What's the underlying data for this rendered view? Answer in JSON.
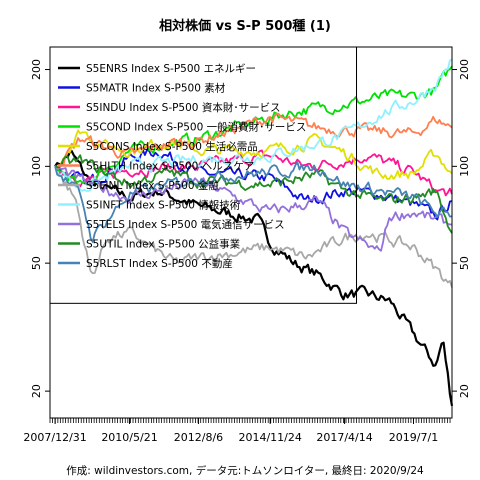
{
  "chart_data": {
    "type": "line",
    "title": "相対株価 vs S-P 500種 (1)",
    "caption": "作成: wildinvestors.com, データ元:トムソンロイター, 最終日: 2020/9/24",
    "y_scale": "log",
    "ylim": [
      16.5,
      235
    ],
    "y_ticks": [
      {
        "value": 20,
        "label": "20"
      },
      {
        "value": 50,
        "label": "50"
      },
      {
        "value": 100,
        "label": "100"
      },
      {
        "value": 200,
        "label": "200"
      }
    ],
    "x_range": [
      "2007-11-01",
      "2020-09-24"
    ],
    "x_ticks": [
      {
        "date": "2007-12-31",
        "label": "2007/12/31"
      },
      {
        "date": "2010-05-21",
        "label": "2010/5/21"
      },
      {
        "date": "2012-08-06",
        "label": "2012/8/6"
      },
      {
        "date": "2014-11-24",
        "label": "2014/11/24"
      },
      {
        "date": "2017-04-14",
        "label": "2017/4/14"
      },
      {
        "date": "2019-07-01",
        "label": "2019/7/1"
      }
    ],
    "marker_date": "2017-09-01",
    "legend_position": "top-left",
    "series": [
      {
        "name": "S5ENRS Index S-P500 エネルギー",
        "color": "#000000",
        "points": [
          [
            "2007-12-31",
            100
          ],
          [
            "2008-07-01",
            110
          ],
          [
            "2009-03-01",
            88
          ],
          [
            "2010-05-21",
            80
          ],
          [
            "2011-05-01",
            84
          ],
          [
            "2012-08-06",
            75
          ],
          [
            "2013-06-01",
            72
          ],
          [
            "2014-06-30",
            68
          ],
          [
            "2014-11-24",
            58
          ],
          [
            "2015-09-01",
            50
          ],
          [
            "2016-06-01",
            46
          ],
          [
            "2017-04-14",
            40
          ],
          [
            "2018-01-01",
            40
          ],
          [
            "2018-10-01",
            38
          ],
          [
            "2019-07-01",
            30
          ],
          [
            "2020-03-20",
            24
          ],
          [
            "2020-06-08",
            29
          ],
          [
            "2020-09-24",
            18
          ]
        ]
      },
      {
        "name": "S5MATR Index S-P500 素材",
        "color": "#1010e0",
        "points": [
          [
            "2007-12-31",
            100
          ],
          [
            "2009-01-01",
            88
          ],
          [
            "2010-05-21",
            106
          ],
          [
            "2011-05-01",
            112
          ],
          [
            "2012-08-06",
            95
          ],
          [
            "2014-11-24",
            92
          ],
          [
            "2016-01-15",
            78
          ],
          [
            "2017-04-14",
            84
          ],
          [
            "2018-06-01",
            82
          ],
          [
            "2019-07-01",
            76
          ],
          [
            "2020-03-20",
            70
          ],
          [
            "2020-09-24",
            78
          ]
        ]
      },
      {
        "name": "S5INDU Index S-P500 資本財･サービス",
        "color": "#ff1493",
        "points": [
          [
            "2007-12-31",
            100
          ],
          [
            "2009-01-01",
            90
          ],
          [
            "2010-05-21",
            98
          ],
          [
            "2012-08-06",
            100
          ],
          [
            "2014-11-24",
            108
          ],
          [
            "2016-01-01",
            100
          ],
          [
            "2017-04-14",
            104
          ],
          [
            "2018-01-01",
            108
          ],
          [
            "2019-07-01",
            96
          ],
          [
            "2020-03-20",
            84
          ],
          [
            "2020-09-24",
            82
          ]
        ]
      },
      {
        "name": "S5COND Index S-P500 一般消費財･サービス",
        "color": "#00e000",
        "points": [
          [
            "2007-12-31",
            100
          ],
          [
            "2008-11-01",
            86
          ],
          [
            "2010-05-21",
            112
          ],
          [
            "2012-08-06",
            122
          ],
          [
            "2014-11-24",
            142
          ],
          [
            "2016-01-01",
            150
          ],
          [
            "2017-04-14",
            156
          ],
          [
            "2018-09-01",
            165
          ],
          [
            "2019-07-01",
            165
          ],
          [
            "2020-03-20",
            172
          ],
          [
            "2020-09-24",
            205
          ]
        ]
      },
      {
        "name": "S5CONS Index S-P500 生活必需品",
        "color": "#e0e000",
        "points": [
          [
            "2007-12-31",
            100
          ],
          [
            "2008-11-01",
            130
          ],
          [
            "2009-06-01",
            118
          ],
          [
            "2010-05-21",
            112
          ],
          [
            "2011-09-01",
            120
          ],
          [
            "2012-08-06",
            112
          ],
          [
            "2014-11-24",
            112
          ],
          [
            "2016-06-01",
            120
          ],
          [
            "2017-04-14",
            110
          ],
          [
            "2018-06-01",
            94
          ],
          [
            "2019-07-01",
            95
          ],
          [
            "2020-03-20",
            110
          ],
          [
            "2020-09-24",
            95
          ]
        ]
      },
      {
        "name": "S5HLTH Index S-P500 ヘルスケア",
        "color": "#ff7f50",
        "points": [
          [
            "2007-12-31",
            100
          ],
          [
            "2008-11-01",
            122
          ],
          [
            "2010-05-21",
            108
          ],
          [
            "2011-09-01",
            118
          ],
          [
            "2012-08-06",
            120
          ],
          [
            "2014-11-24",
            142
          ],
          [
            "2016-06-01",
            132
          ],
          [
            "2017-04-14",
            130
          ],
          [
            "2018-06-01",
            128
          ],
          [
            "2019-07-01",
            126
          ],
          [
            "2020-03-20",
            140
          ],
          [
            "2020-09-24",
            132
          ]
        ]
      },
      {
        "name": "S5FINL Index S-P500 金融",
        "color": "#a8a8a8",
        "points": [
          [
            "2007-12-31",
            100
          ],
          [
            "2008-09-01",
            78
          ],
          [
            "2009-03-01",
            45
          ],
          [
            "2009-09-01",
            60
          ],
          [
            "2010-05-21",
            62
          ],
          [
            "2011-11-01",
            50
          ],
          [
            "2012-08-06",
            52
          ],
          [
            "2014-11-24",
            56
          ],
          [
            "2016-02-01",
            52
          ],
          [
            "2017-04-14",
            60
          ],
          [
            "2018-01-01",
            62
          ],
          [
            "2019-07-01",
            56
          ],
          [
            "2020-03-20",
            48
          ],
          [
            "2020-09-24",
            42
          ]
        ]
      },
      {
        "name": "S5INFT Index S-P500 情報技術",
        "color": "#90f0ff",
        "points": [
          [
            "2007-12-31",
            100
          ],
          [
            "2008-11-01",
            85
          ],
          [
            "2010-05-21",
            100
          ],
          [
            "2012-08-06",
            105
          ],
          [
            "2014-11-24",
            108
          ],
          [
            "2016-01-01",
            115
          ],
          [
            "2017-04-14",
            125
          ],
          [
            "2018-06-01",
            145
          ],
          [
            "2019-07-01",
            160
          ],
          [
            "2020-03-20",
            180
          ],
          [
            "2020-09-24",
            215
          ]
        ]
      },
      {
        "name": "S5TELS Index S-P500 電気通信サービス",
        "color": "#9370db",
        "points": [
          [
            "2007-12-31",
            100
          ],
          [
            "2008-11-01",
            90
          ],
          [
            "2010-05-21",
            80
          ],
          [
            "2011-09-01",
            85
          ],
          [
            "2012-08-06",
            90
          ],
          [
            "2014-11-24",
            72
          ],
          [
            "2016-06-01",
            78
          ],
          [
            "2017-04-14",
            62
          ],
          [
            "2018-06-01",
            54
          ],
          [
            "2018-09-24",
            70
          ],
          [
            "2019-07-01",
            72
          ],
          [
            "2020-03-20",
            68
          ],
          [
            "2020-09-24",
            66
          ]
        ]
      },
      {
        "name": "S5UTIL Index S-P500 公益事業",
        "color": "#228b22",
        "points": [
          [
            "2007-12-31",
            100
          ],
          [
            "2008-11-01",
            104
          ],
          [
            "2010-05-21",
            88
          ],
          [
            "2011-09-01",
            96
          ],
          [
            "2012-08-06",
            90
          ],
          [
            "2014-11-24",
            88
          ],
          [
            "2016-06-01",
            94
          ],
          [
            "2017-04-14",
            84
          ],
          [
            "2018-06-01",
            78
          ],
          [
            "2019-07-01",
            80
          ],
          [
            "2020-03-20",
            84
          ],
          [
            "2020-09-24",
            62
          ]
        ]
      },
      {
        "name": "S5RLST Index S-P500 不動産",
        "color": "#4682b4",
        "points": [
          [
            "2007-12-31",
            100
          ],
          [
            "2008-11-01",
            80
          ],
          [
            "2009-03-01",
            60
          ],
          [
            "2010-05-21",
            82
          ],
          [
            "2012-08-06",
            92
          ],
          [
            "2014-11-24",
            96
          ],
          [
            "2016-06-01",
            100
          ],
          [
            "2017-04-14",
            88
          ],
          [
            "2018-06-01",
            84
          ],
          [
            "2019-07-01",
            80
          ],
          [
            "2020-03-20",
            72
          ],
          [
            "2020-09-24",
            70
          ]
        ]
      }
    ]
  }
}
